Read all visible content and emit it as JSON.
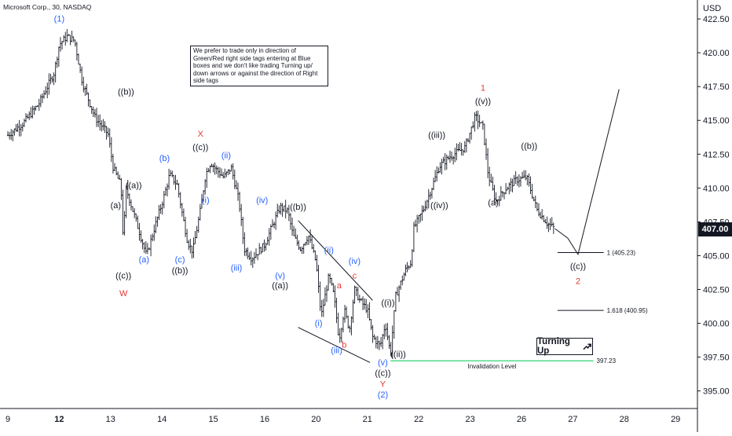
{
  "chart_data": {
    "type": "candlestick",
    "title": "Microsoft Corp., 30, NASDAQ",
    "currency": "USD",
    "last_price": "407.00",
    "y_ticks": [
      "422.50",
      "420.00",
      "417.50",
      "415.00",
      "412.50",
      "410.00",
      "407.50",
      "405.00",
      "402.50",
      "400.00",
      "397.50",
      "395.00"
    ],
    "x_ticks": [
      "9",
      "12",
      "13",
      "14",
      "15",
      "16",
      "20",
      "21",
      "22",
      "23",
      "26",
      "27",
      "28",
      "29"
    ],
    "ylim": [
      393.7,
      423.9
    ],
    "note": "We prefer to trade only in direction of Green/Red right side tags entering at Blue boxes and we don't like trading Turning up/ down arrows or against the direction of Right side tags",
    "price_path": [
      [
        0,
        413.9
      ],
      [
        0.3,
        414.8
      ],
      [
        0.6,
        416.2
      ],
      [
        0.9,
        418.5
      ],
      [
        1.0,
        420.6
      ],
      [
        1.15,
        421.2
      ],
      [
        1.3,
        420.9
      ],
      [
        1.45,
        417.8
      ],
      [
        1.7,
        415.2
      ],
      [
        1.95,
        414.0
      ],
      [
        2.05,
        411.5
      ],
      [
        2.2,
        410.2
      ],
      [
        2.25,
        406.0
      ],
      [
        2.3,
        410.0
      ],
      [
        2.5,
        407.5
      ],
      [
        2.7,
        405.0
      ],
      [
        2.85,
        407.0
      ],
      [
        3.05,
        409.5
      ],
      [
        3.15,
        411.0
      ],
      [
        3.3,
        410.2
      ],
      [
        3.4,
        408.0
      ],
      [
        3.5,
        406.0
      ],
      [
        3.6,
        405.3
      ],
      [
        3.75,
        408.4
      ],
      [
        3.85,
        411.0
      ],
      [
        3.95,
        411.9
      ],
      [
        4.05,
        411.4
      ],
      [
        4.2,
        410.8
      ],
      [
        4.35,
        411.5
      ],
      [
        4.5,
        409.0
      ],
      [
        4.6,
        405.5
      ],
      [
        4.75,
        404.8
      ],
      [
        5.0,
        405.8
      ],
      [
        5.3,
        408.6
      ],
      [
        5.45,
        408.3
      ],
      [
        5.55,
        406.5
      ],
      [
        5.7,
        405.5
      ],
      [
        5.85,
        406.5
      ],
      [
        6.0,
        404.5
      ],
      [
        6.1,
        400.5
      ],
      [
        6.25,
        403.5
      ],
      [
        6.35,
        402.0
      ],
      [
        6.45,
        398.8
      ],
      [
        6.55,
        401.0
      ],
      [
        6.65,
        399.5
      ],
      [
        6.75,
        402.5
      ],
      [
        6.85,
        401.7
      ],
      [
        7.0,
        401.0
      ],
      [
        7.1,
        399.0
      ],
      [
        7.25,
        398.3
      ],
      [
        7.35,
        400.0
      ],
      [
        7.45,
        397.7
      ],
      [
        7.55,
        402.0
      ],
      [
        7.75,
        404.0
      ],
      [
        7.85,
        404.5
      ],
      [
        7.9,
        407.0
      ],
      [
        8.1,
        408.5
      ],
      [
        8.25,
        410.0
      ],
      [
        8.4,
        411.6
      ],
      [
        8.6,
        412.3
      ],
      [
        8.9,
        413.0
      ],
      [
        9.1,
        415.3
      ],
      [
        9.25,
        414.5
      ],
      [
        9.35,
        411.0
      ],
      [
        9.5,
        409.0
      ],
      [
        9.7,
        410.0
      ],
      [
        9.9,
        410.6
      ],
      [
        10.1,
        410.8
      ],
      [
        10.3,
        408.4
      ],
      [
        10.5,
        407.4
      ],
      [
        10.65,
        407.0
      ]
    ],
    "wave_labels": [
      {
        "text": "(1)",
        "color": "#2962ff",
        "x": 1.0,
        "y": 422.3
      },
      {
        "text": "((b))",
        "color": "#131722",
        "x": 2.3,
        "y": 416.9
      },
      {
        "text": "((a))",
        "color": "#131722",
        "x": 2.45,
        "y": 410.0
      },
      {
        "text": "(a)",
        "color": "#131722",
        "x": 2.1,
        "y": 408.5
      },
      {
        "text": "((c))",
        "color": "#131722",
        "x": 2.25,
        "y": 403.3
      },
      {
        "text": "W",
        "color": "#e53935",
        "x": 2.25,
        "y": 402.0
      },
      {
        "text": "(a)",
        "color": "#2962ff",
        "x": 2.65,
        "y": 404.5
      },
      {
        "text": "(b)",
        "color": "#2962ff",
        "x": 3.05,
        "y": 412.0
      },
      {
        "text": "(c)",
        "color": "#2962ff",
        "x": 3.35,
        "y": 404.5
      },
      {
        "text": "((b))",
        "color": "#131722",
        "x": 3.35,
        "y": 403.7
      },
      {
        "text": "X",
        "color": "#e53935",
        "x": 3.75,
        "y": 413.8
      },
      {
        "text": "((c))",
        "color": "#131722",
        "x": 3.75,
        "y": 412.8
      },
      {
        "text": "(ii)",
        "color": "#2962ff",
        "x": 4.25,
        "y": 412.2
      },
      {
        "text": "(i)",
        "color": "#2962ff",
        "x": 3.85,
        "y": 408.9
      },
      {
        "text": "(iii)",
        "color": "#2962ff",
        "x": 4.45,
        "y": 403.9
      },
      {
        "text": "(iv)",
        "color": "#2962ff",
        "x": 4.95,
        "y": 408.9
      },
      {
        "text": "((b))",
        "color": "#131722",
        "x": 5.65,
        "y": 408.4
      },
      {
        "text": "(v)",
        "color": "#2962ff",
        "x": 5.3,
        "y": 403.3
      },
      {
        "text": "((a))",
        "color": "#131722",
        "x": 5.3,
        "y": 402.6
      },
      {
        "text": "(ii)",
        "color": "#2962ff",
        "x": 6.25,
        "y": 405.2
      },
      {
        "text": "(i)",
        "color": "#2962ff",
        "x": 6.05,
        "y": 399.8
      },
      {
        "text": "a",
        "color": "#e53935",
        "x": 6.45,
        "y": 402.6
      },
      {
        "text": "(iv)",
        "color": "#2962ff",
        "x": 6.75,
        "y": 404.4
      },
      {
        "text": "c",
        "color": "#e53935",
        "x": 6.75,
        "y": 403.3
      },
      {
        "text": "b",
        "color": "#e53935",
        "x": 6.55,
        "y": 398.2
      },
      {
        "text": "(iii)",
        "color": "#2962ff",
        "x": 6.4,
        "y": 397.8
      },
      {
        "text": "((i))",
        "color": "#131722",
        "x": 7.4,
        "y": 401.3
      },
      {
        "text": "(v)",
        "color": "#2962ff",
        "x": 7.3,
        "y": 396.9
      },
      {
        "text": "((c))",
        "color": "#131722",
        "x": 7.3,
        "y": 396.1
      },
      {
        "text": "Y",
        "color": "#e53935",
        "x": 7.3,
        "y": 395.3
      },
      {
        "text": "(2)",
        "color": "#2962ff",
        "x": 7.3,
        "y": 394.5
      },
      {
        "text": "((ii))",
        "color": "#131722",
        "x": 7.6,
        "y": 397.5
      },
      {
        "text": "((iii))",
        "color": "#131722",
        "x": 8.35,
        "y": 413.7
      },
      {
        "text": "((iv))",
        "color": "#131722",
        "x": 8.4,
        "y": 408.5
      },
      {
        "text": "1",
        "color": "#e53935",
        "x": 9.25,
        "y": 417.2
      },
      {
        "text": "((v))",
        "color": "#131722",
        "x": 9.25,
        "y": 416.2
      },
      {
        "text": "((b))",
        "color": "#131722",
        "x": 10.15,
        "y": 412.9
      },
      {
        "text": "(a)",
        "color": "#131722",
        "x": 9.45,
        "y": 408.7
      },
      {
        "text": "((c))",
        "color": "#131722",
        "x": 11.1,
        "y": 404.0
      },
      {
        "text": "2",
        "color": "#e53935",
        "x": 11.1,
        "y": 402.9
      }
    ],
    "projection": {
      "x": [
        10.65,
        10.9,
        11.1,
        11.9
      ],
      "y": [
        407.0,
        406.3,
        405.1,
        417.3
      ]
    },
    "channel_lines": [
      {
        "x": [
          5.65,
          7.1
        ],
        "y": [
          407.6,
          401.7
        ]
      },
      {
        "x": [
          5.65,
          7.05
        ],
        "y": [
          399.7,
          397.1
        ]
      }
    ],
    "target_levels": [
      {
        "label": "1 (405.23)",
        "value": 405.23,
        "x": [
          10.7,
          11.6
        ]
      },
      {
        "label": "1.618 (400.95)",
        "value": 400.95,
        "x": [
          10.7,
          11.6
        ]
      }
    ],
    "invalidation": {
      "label": "Invalidation Level",
      "value_label": "397.23",
      "value": 397.23,
      "x": [
        7.45,
        11.4
      ],
      "color": "#00c853"
    },
    "turning_label": "Turning Up"
  }
}
